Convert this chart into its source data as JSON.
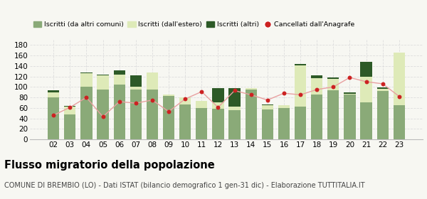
{
  "years": [
    "02",
    "03",
    "04",
    "05",
    "06",
    "07",
    "08",
    "09",
    "10",
    "11",
    "12",
    "13",
    "14",
    "15",
    "16",
    "17",
    "18",
    "19",
    "20",
    "21",
    "22",
    "23"
  ],
  "iscritti_comuni": [
    80,
    48,
    100,
    95,
    105,
    95,
    95,
    83,
    67,
    60,
    58,
    55,
    95,
    57,
    60,
    63,
    85,
    93,
    85,
    70,
    92,
    65
  ],
  "iscritti_estero": [
    10,
    14,
    26,
    27,
    18,
    5,
    32,
    2,
    13,
    13,
    12,
    8,
    3,
    8,
    5,
    78,
    32,
    22,
    2,
    50,
    5,
    100
  ],
  "iscritti_altri": [
    3,
    2,
    1,
    2,
    8,
    22,
    0,
    0,
    0,
    0,
    28,
    35,
    0,
    1,
    0,
    3,
    5,
    3,
    2,
    28,
    2,
    0
  ],
  "cancellati": [
    46,
    61,
    80,
    43,
    72,
    69,
    75,
    53,
    77,
    91,
    61,
    93,
    85,
    75,
    88,
    85,
    95,
    100,
    118,
    110,
    106,
    82
  ],
  "color_comuni": "#8aaa78",
  "color_estero": "#deeab8",
  "color_altri": "#2d5a27",
  "color_cancellati": "#cc2222",
  "color_line": "#e8a0a0",
  "bg_color": "#f7f7f2",
  "grid_color": "#dddddd",
  "ylim": [
    0,
    190
  ],
  "yticks": [
    0,
    20,
    40,
    60,
    80,
    100,
    120,
    140,
    160,
    180
  ],
  "title": "Flusso migratorio della popolazione",
  "subtitle": "COMUNE DI BREMBIO (LO) - Dati ISTAT (bilancio demografico 1 gen-31 dic) - Elaborazione TUTTITALIA.IT",
  "legend_labels": [
    "Iscritti (da altri comuni)",
    "Iscritti (dall'estero)",
    "Iscritti (altri)",
    "Cancellati dall'Anagrafe"
  ],
  "title_fontsize": 10.5,
  "subtitle_fontsize": 7,
  "tick_fontsize": 7.5
}
